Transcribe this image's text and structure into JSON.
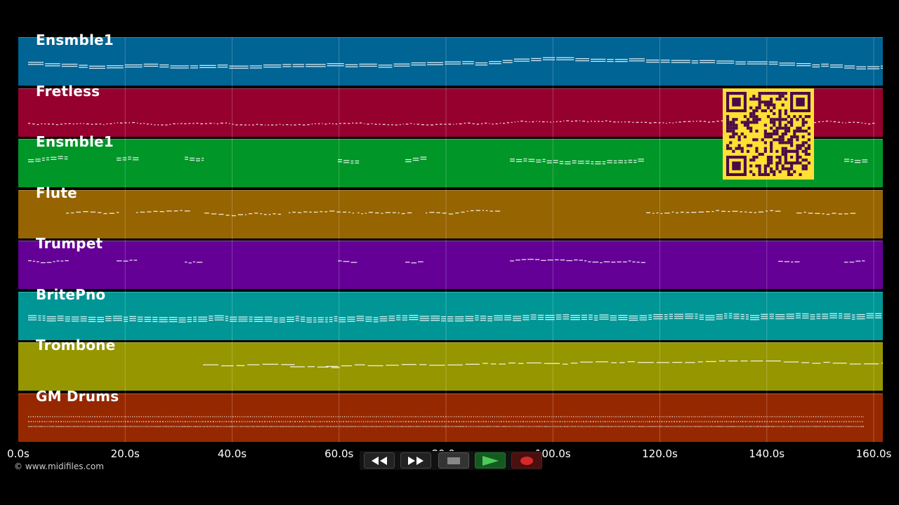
{
  "tracks": [
    {
      "name": "Ensmble1",
      "color": "#006494",
      "style": "dense-mid"
    },
    {
      "name": "Fretless",
      "color": "#96002e",
      "style": "bass"
    },
    {
      "name": "Ensmble1",
      "color": "#009628",
      "style": "sparse"
    },
    {
      "name": "Flute",
      "color": "#966400",
      "style": "melody"
    },
    {
      "name": "Trumpet",
      "color": "#640096",
      "style": "sparse2"
    },
    {
      "name": "BritePno",
      "color": "#009696",
      "style": "dense"
    },
    {
      "name": "Trombone",
      "color": "#969600",
      "style": "trombone"
    },
    {
      "name": "GM Drums",
      "color": "#962800",
      "style": "drums"
    }
  ],
  "axis": {
    "ticks": [
      "0.0s",
      "20.0s",
      "40.0s",
      "60.0s",
      "80.0s",
      "100.0s",
      "120.0s",
      "140.0s",
      "160.0s"
    ],
    "max_seconds": 160
  },
  "copyright": "© www.midifiles.com",
  "controls": [
    {
      "name": "rewind-button",
      "icon": "rewind-icon"
    },
    {
      "name": "fast-forward-button",
      "icon": "fast-forward-icon"
    },
    {
      "name": "stop-button",
      "icon": "stop-icon"
    },
    {
      "name": "play-button",
      "icon": "play-icon"
    },
    {
      "name": "record-button",
      "icon": "record-icon"
    }
  ],
  "qr_code": {
    "icon": "qr-code-icon",
    "fg": "#4a0a4a",
    "bg": "#ffe033"
  }
}
